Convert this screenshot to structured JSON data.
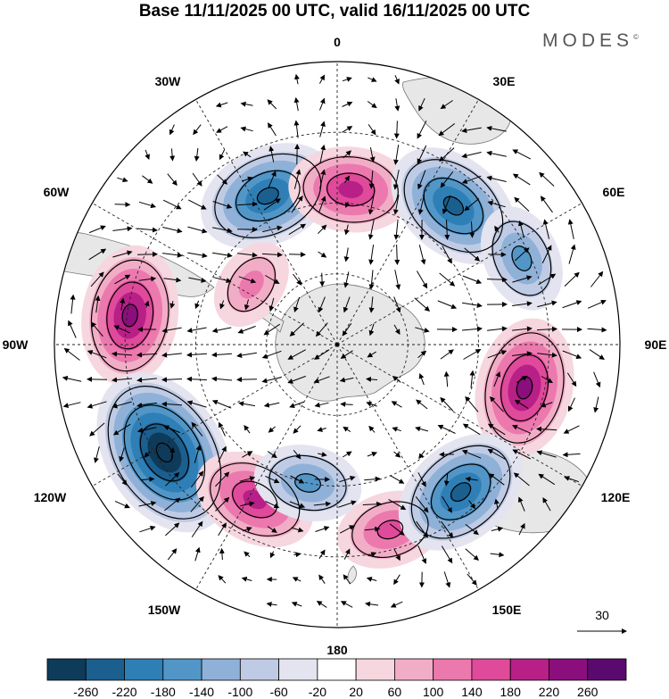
{
  "title": "Base 11/11/2025 00 UTC, valid 16/11/2025 00 UTC",
  "brand": "MODES",
  "brand_mark": "©",
  "map": {
    "projection": "south polar stereographic",
    "longitude_labels": [
      "0",
      "30E",
      "60E",
      "90E",
      "120E",
      "150E",
      "180",
      "150W",
      "120W",
      "90W",
      "60W",
      "30W"
    ],
    "reference_vector": {
      "label": "30"
    }
  },
  "anomaly_centers": [
    {
      "name": "low-30W",
      "lon_deg": -25,
      "colat": 0.58,
      "value": -180
    },
    {
      "name": "high-5E",
      "lon_deg": 5,
      "colat": 0.55,
      "value": 140
    },
    {
      "name": "low-40E",
      "lon_deg": 40,
      "colat": 0.64,
      "value": -180
    },
    {
      "name": "low-65E",
      "lon_deg": 65,
      "colat": 0.72,
      "value": -100
    },
    {
      "name": "high-85W",
      "lon_deg": -82,
      "colat": 0.74,
      "value": 180
    },
    {
      "name": "high-100E",
      "lon_deg": 103,
      "colat": 0.68,
      "value": 180
    },
    {
      "name": "low-120W",
      "lon_deg": -122,
      "colat": 0.72,
      "value": -260
    },
    {
      "name": "high-150W",
      "lon_deg": -152,
      "colat": 0.62,
      "value": 140
    },
    {
      "name": "low-170W",
      "lon_deg": -168,
      "colat": 0.5,
      "value": -100
    },
    {
      "name": "high-165E",
      "lon_deg": 164,
      "colat": 0.68,
      "value": 100
    },
    {
      "name": "low-140E",
      "lon_deg": 140,
      "colat": 0.68,
      "value": -200
    },
    {
      "name": "high-55W",
      "lon_deg": -55,
      "colat": 0.37,
      "value": 60
    }
  ],
  "colorbar": {
    "labels": [
      "-260",
      "-220",
      "-180",
      "-140",
      "-100",
      "-60",
      "-20",
      "20",
      "60",
      "100",
      "140",
      "180",
      "220",
      "260"
    ],
    "colors": [
      "#0f3b5a",
      "#1b5f8f",
      "#2f7fb7",
      "#5296c7",
      "#8fb1d8",
      "#bfcbe4",
      "#e4e4f0",
      "#ffffff",
      "#f6d7df",
      "#f2adc6",
      "#ec79ae",
      "#df4a9a",
      "#b81f87",
      "#8a0f7c",
      "#5a0a6e"
    ]
  }
}
